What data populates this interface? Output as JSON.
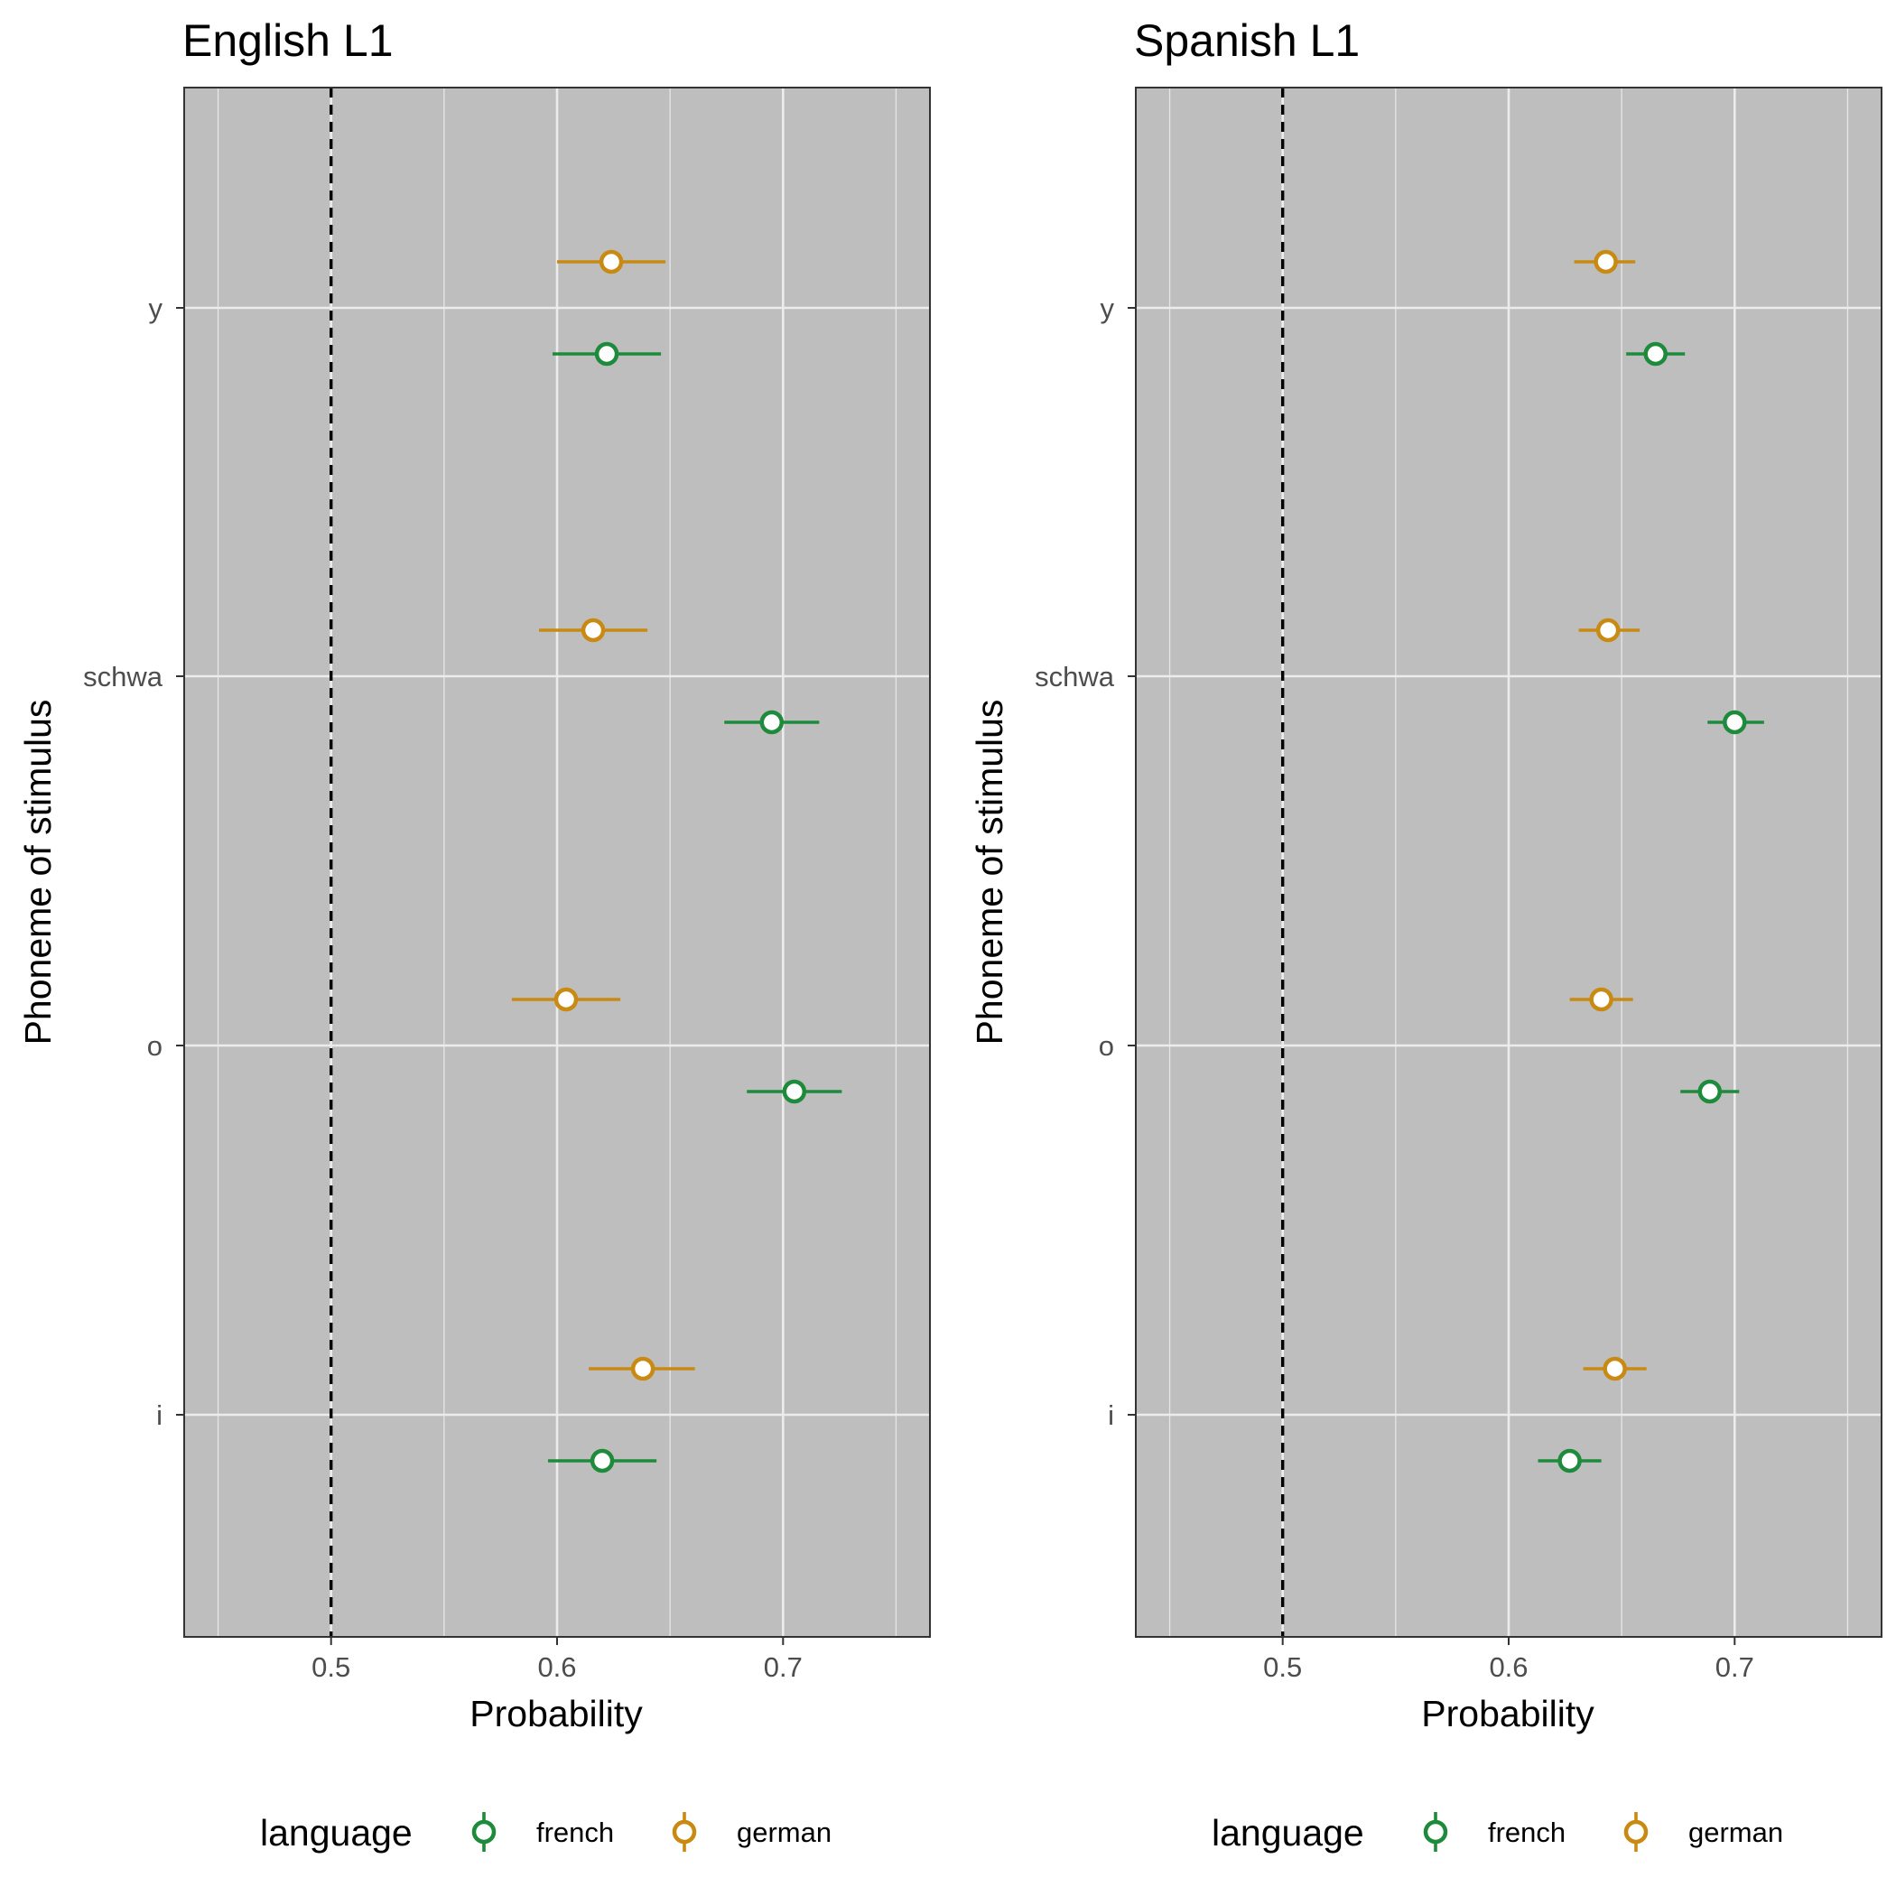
{
  "chart_data": [
    {
      "type": "point-range",
      "title": "English L1",
      "xlabel": "Probability",
      "ylabel": "Phoneme of stimulus",
      "xlim": [
        0.435,
        0.765
      ],
      "xticks": [
        {
          "value": 0.5,
          "label": "0.5"
        },
        {
          "value": 0.6,
          "label": "0.6"
        },
        {
          "value": 0.7,
          "label": "0.7"
        }
      ],
      "categories": [
        "i",
        "o",
        "schwa",
        "y"
      ],
      "reference_line": {
        "x": 0.5,
        "style": "dashed",
        "color": "#000000"
      },
      "grid": true,
      "legend_position": "bottom",
      "legend_title": "language",
      "series": [
        {
          "name": "french",
          "color": "#1e8a3b",
          "points": [
            {
              "category": "i",
              "value": 0.62,
              "low": 0.596,
              "high": 0.644
            },
            {
              "category": "o",
              "value": 0.705,
              "low": 0.684,
              "high": 0.726
            },
            {
              "category": "schwa",
              "value": 0.695,
              "low": 0.674,
              "high": 0.716
            },
            {
              "category": "y",
              "value": 0.622,
              "low": 0.598,
              "high": 0.646
            }
          ]
        },
        {
          "name": "german",
          "color": "#c88a12",
          "points": [
            {
              "category": "i",
              "value": 0.638,
              "low": 0.614,
              "high": 0.661
            },
            {
              "category": "o",
              "value": 0.604,
              "low": 0.58,
              "high": 0.628
            },
            {
              "category": "schwa",
              "value": 0.616,
              "low": 0.592,
              "high": 0.64
            },
            {
              "category": "y",
              "value": 0.624,
              "low": 0.6,
              "high": 0.648
            }
          ]
        }
      ]
    },
    {
      "type": "point-range",
      "title": "Spanish L1",
      "xlabel": "Probability",
      "ylabel": "Phoneme of stimulus",
      "xlim": [
        0.435,
        0.765
      ],
      "xticks": [
        {
          "value": 0.5,
          "label": "0.5"
        },
        {
          "value": 0.6,
          "label": "0.6"
        },
        {
          "value": 0.7,
          "label": "0.7"
        }
      ],
      "categories": [
        "i",
        "o",
        "schwa",
        "y"
      ],
      "reference_line": {
        "x": 0.5,
        "style": "dashed",
        "color": "#000000"
      },
      "grid": true,
      "legend_position": "bottom",
      "legend_title": "language",
      "series": [
        {
          "name": "french",
          "color": "#1e8a3b",
          "points": [
            {
              "category": "i",
              "value": 0.627,
              "low": 0.613,
              "high": 0.641
            },
            {
              "category": "o",
              "value": 0.689,
              "low": 0.676,
              "high": 0.702
            },
            {
              "category": "schwa",
              "value": 0.7,
              "low": 0.688,
              "high": 0.713
            },
            {
              "category": "y",
              "value": 0.665,
              "low": 0.652,
              "high": 0.678
            }
          ]
        },
        {
          "name": "german",
          "color": "#c88a12",
          "points": [
            {
              "category": "i",
              "value": 0.647,
              "low": 0.633,
              "high": 0.661
            },
            {
              "category": "o",
              "value": 0.641,
              "low": 0.627,
              "high": 0.655
            },
            {
              "category": "schwa",
              "value": 0.644,
              "low": 0.631,
              "high": 0.658
            },
            {
              "category": "y",
              "value": 0.643,
              "low": 0.629,
              "high": 0.656
            }
          ]
        }
      ]
    }
  ]
}
